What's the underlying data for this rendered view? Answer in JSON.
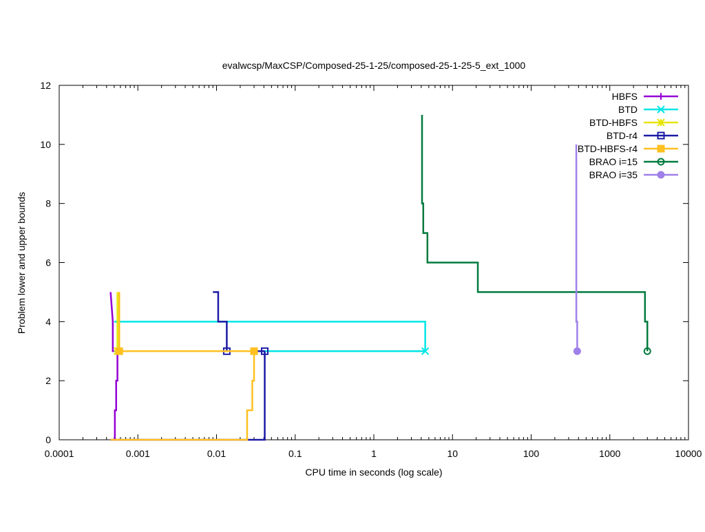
{
  "chart_data": {
    "type": "line",
    "title": "evalwcsp/MaxCSP/Composed-25-1-25/composed-25-1-25-5_ext_1000",
    "xlabel": "CPU time in seconds (log scale)",
    "ylabel": "Problem lower and upper bounds",
    "xscale": "log",
    "xlim": [
      0.0001,
      10000
    ],
    "ylim": [
      0,
      12
    ],
    "xticks": [
      {
        "value": 0.0001,
        "label": "0.0001"
      },
      {
        "value": 0.001,
        "label": "0.001"
      },
      {
        "value": 0.01,
        "label": "0.01"
      },
      {
        "value": 0.1,
        "label": "0.1"
      },
      {
        "value": 1,
        "label": "1"
      },
      {
        "value": 10,
        "label": "10"
      },
      {
        "value": 100,
        "label": "100"
      },
      {
        "value": 1000,
        "label": "1000"
      },
      {
        "value": 10000,
        "label": "10000"
      }
    ],
    "yticks": [
      {
        "value": 0,
        "label": "0"
      },
      {
        "value": 2,
        "label": "2"
      },
      {
        "value": 4,
        "label": "4"
      },
      {
        "value": 6,
        "label": "6"
      },
      {
        "value": 8,
        "label": "8"
      },
      {
        "value": 10,
        "label": "10"
      },
      {
        "value": 12,
        "label": "12"
      }
    ],
    "grid": false,
    "legend_position": "top-right",
    "series": [
      {
        "name": "HBFS",
        "color": "#9400d3",
        "marker": "plus",
        "upper": [
          [
            0.00045,
            5
          ],
          [
            0.00048,
            4
          ],
          [
            0.00048,
            3
          ],
          [
            0.00055,
            3
          ]
        ],
        "lower": [
          [
            0.00045,
            0
          ],
          [
            0.00051,
            0
          ],
          [
            0.00051,
            1
          ],
          [
            0.00053,
            1
          ],
          [
            0.00053,
            2
          ],
          [
            0.00055,
            2
          ],
          [
            0.00055,
            3
          ]
        ],
        "final": [
          0.00055,
          3
        ]
      },
      {
        "name": "BTD",
        "color": "#00e5e5",
        "marker": "x",
        "upper": [
          [
            0.0005,
            4
          ],
          [
            4.5,
            4
          ],
          [
            4.5,
            3
          ]
        ],
        "lower": [
          [
            0.0005,
            3
          ],
          [
            4.5,
            3
          ]
        ],
        "final": [
          4.5,
          3
        ]
      },
      {
        "name": "BTD-HBFS",
        "color": "#e5e500",
        "marker": "star",
        "upper": [
          [
            0.00055,
            5
          ],
          [
            0.00055,
            3
          ]
        ],
        "lower": [
          [
            0.00053,
            3
          ],
          [
            0.00055,
            3
          ]
        ],
        "final": [
          0.00055,
          3
        ]
      },
      {
        "name": "BTD-r4",
        "color": "#1a1aa6",
        "marker": "box",
        "upper": [
          [
            0.009,
            5
          ],
          [
            0.0105,
            5
          ],
          [
            0.0105,
            4
          ],
          [
            0.0135,
            4
          ],
          [
            0.0135,
            3
          ],
          [
            0.041,
            3
          ]
        ],
        "lower": [
          [
            0.0005,
            0
          ],
          [
            0.041,
            0
          ],
          [
            0.041,
            3
          ]
        ],
        "final": [
          0.041,
          3
        ],
        "extra_markers": [
          [
            0.0135,
            3
          ]
        ]
      },
      {
        "name": "BTD-HBFS-r4",
        "color": "#ffc020",
        "marker": "filled-box",
        "upper": [
          [
            0.00058,
            5
          ],
          [
            0.00058,
            3
          ],
          [
            0.03,
            3
          ]
        ],
        "lower": [
          [
            0.00045,
            0
          ],
          [
            0.0245,
            0
          ],
          [
            0.0245,
            1
          ],
          [
            0.0285,
            1
          ],
          [
            0.0285,
            2
          ],
          [
            0.03,
            2
          ],
          [
            0.03,
            3
          ]
        ],
        "final": [
          0.03,
          3
        ],
        "extra_markers": [
          [
            0.00058,
            3
          ]
        ]
      },
      {
        "name": "BRAO i=15",
        "color": "#007a3d",
        "marker": "circle",
        "upper": [
          [
            4.1,
            11
          ],
          [
            4.1,
            8
          ],
          [
            4.25,
            8
          ],
          [
            4.25,
            7
          ],
          [
            4.8,
            7
          ],
          [
            4.8,
            6
          ],
          [
            21,
            6
          ],
          [
            21,
            5
          ],
          [
            2800,
            5
          ],
          [
            2800,
            4
          ],
          [
            3000,
            4
          ],
          [
            3000,
            3
          ]
        ],
        "lower": [
          [
            3000,
            3
          ]
        ],
        "final": [
          3000,
          3
        ]
      },
      {
        "name": "BRAO i=35",
        "color": "#9f7fe8",
        "marker": "filled-circle",
        "upper": [
          [
            375,
            10
          ],
          [
            375,
            4
          ],
          [
            385,
            4
          ],
          [
            385,
            3
          ]
        ],
        "lower": [
          [
            385,
            3
          ]
        ],
        "final": [
          385,
          3
        ]
      }
    ]
  }
}
